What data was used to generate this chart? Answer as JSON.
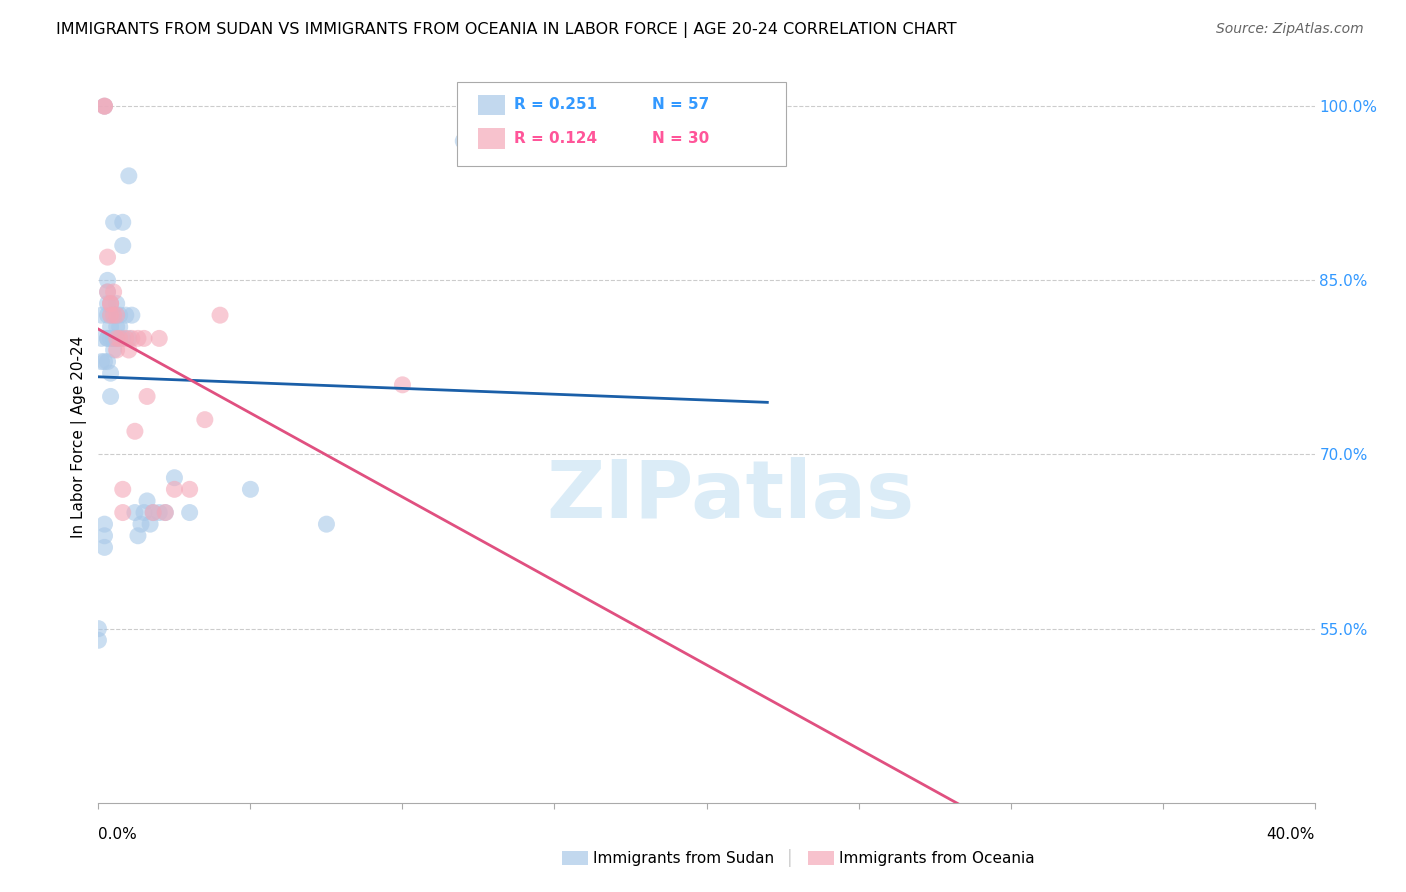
{
  "title": "IMMIGRANTS FROM SUDAN VS IMMIGRANTS FROM OCEANIA IN LABOR FORCE | AGE 20-24 CORRELATION CHART",
  "source": "Source: ZipAtlas.com",
  "ylabel": "In Labor Force | Age 20-24",
  "blue_color": "#a8c8e8",
  "pink_color": "#f4a8b8",
  "blue_line_color": "#1a5fa8",
  "pink_line_color": "#e05080",
  "watermark": "ZIPatlas",
  "sudan_x": [
    0.0,
    0.0,
    0.001,
    0.001,
    0.001,
    0.002,
    0.002,
    0.002,
    0.002,
    0.002,
    0.003,
    0.003,
    0.003,
    0.003,
    0.003,
    0.003,
    0.003,
    0.004,
    0.004,
    0.004,
    0.004,
    0.004,
    0.004,
    0.005,
    0.005,
    0.005,
    0.005,
    0.005,
    0.005,
    0.006,
    0.006,
    0.006,
    0.006,
    0.007,
    0.007,
    0.007,
    0.008,
    0.008,
    0.008,
    0.009,
    0.01,
    0.01,
    0.011,
    0.012,
    0.013,
    0.014,
    0.015,
    0.016,
    0.017,
    0.018,
    0.02,
    0.022,
    0.025,
    0.03,
    0.05,
    0.075,
    0.12
  ],
  "sudan_y": [
    0.54,
    0.55,
    0.78,
    0.8,
    0.82,
    0.62,
    0.63,
    0.64,
    0.78,
    1.0,
    0.78,
    0.8,
    0.82,
    0.84,
    0.85,
    0.8,
    0.83,
    0.75,
    0.77,
    0.8,
    0.82,
    0.83,
    0.81,
    0.8,
    0.8,
    0.79,
    0.8,
    0.82,
    0.9,
    0.8,
    0.82,
    0.81,
    0.83,
    0.82,
    0.8,
    0.81,
    0.8,
    0.88,
    0.9,
    0.82,
    0.94,
    0.8,
    0.82,
    0.65,
    0.63,
    0.64,
    0.65,
    0.66,
    0.64,
    0.65,
    0.65,
    0.65,
    0.68,
    0.65,
    0.67,
    0.64,
    0.97
  ],
  "oceania_x": [
    0.002,
    0.002,
    0.003,
    0.003,
    0.004,
    0.004,
    0.004,
    0.005,
    0.005,
    0.006,
    0.006,
    0.006,
    0.007,
    0.008,
    0.008,
    0.009,
    0.01,
    0.011,
    0.012,
    0.013,
    0.015,
    0.016,
    0.018,
    0.02,
    0.022,
    0.025,
    0.03,
    0.035,
    0.04,
    0.1
  ],
  "oceania_y": [
    1.0,
    1.0,
    0.87,
    0.84,
    0.82,
    0.83,
    0.83,
    0.84,
    0.82,
    0.8,
    0.82,
    0.79,
    0.8,
    0.67,
    0.65,
    0.8,
    0.79,
    0.8,
    0.72,
    0.8,
    0.8,
    0.75,
    0.65,
    0.8,
    0.65,
    0.67,
    0.67,
    0.73,
    0.82,
    0.76
  ],
  "xmin": 0.0,
  "xmax": 0.4,
  "ymin": 0.4,
  "ymax": 1.03,
  "yticks": [
    0.55,
    0.7,
    0.85,
    1.0
  ],
  "ytick_labels": [
    "55.0%",
    "70.0%",
    "85.0%",
    "100.0%"
  ],
  "legend1_R": "R = 0.251",
  "legend1_N": "N = 57",
  "legend2_R": "R = 0.124",
  "legend2_N": "N = 30",
  "blue_text_color": "#3399ff",
  "pink_text_color": "#ff5599"
}
